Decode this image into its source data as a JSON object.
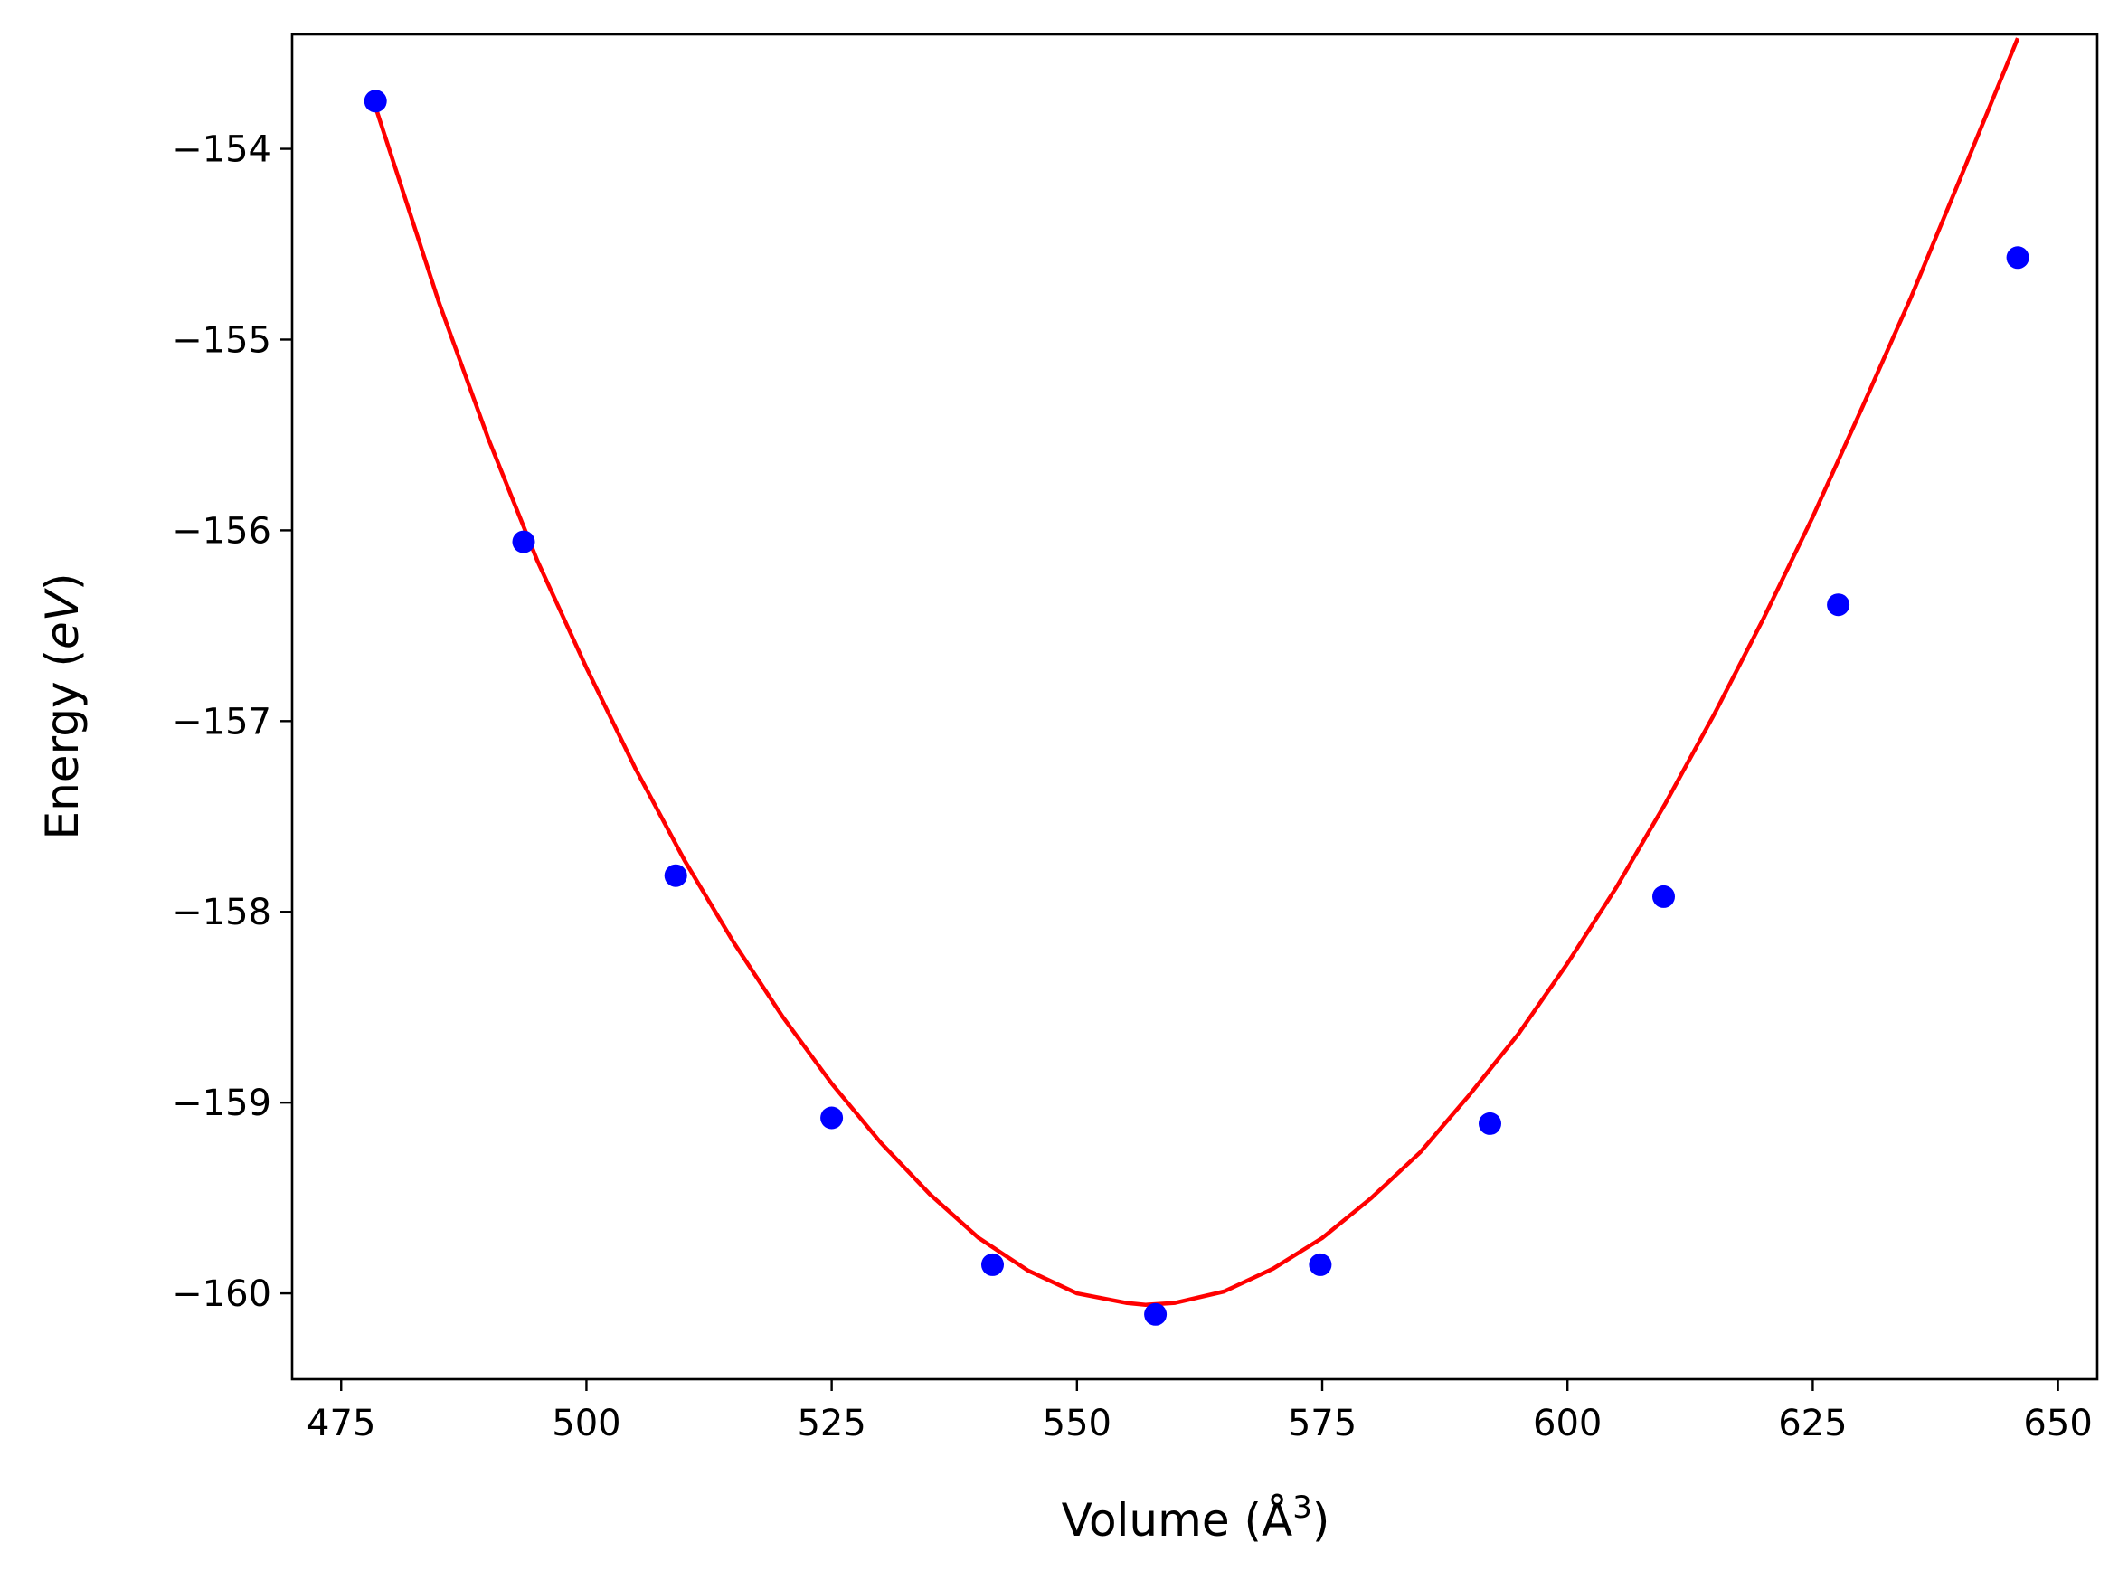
{
  "chart_data": {
    "type": "line",
    "title": "",
    "xlabel": "Volume (Å",
    "xlabel_superscript": "3",
    "xlabel_suffix": ")",
    "ylabel_prefix": "Energy (",
    "ylabel_italic": "eV",
    "ylabel_suffix": ")",
    "xlim": [
      470,
      654
    ],
    "ylim": [
      -160.45,
      -153.4
    ],
    "xticks": [
      475,
      500,
      525,
      550,
      575,
      600,
      625,
      650
    ],
    "yticks": [
      -160,
      -159,
      -158,
      -157,
      -156,
      -155,
      -154
    ],
    "xtick_labels": [
      "475",
      "500",
      "525",
      "550",
      "575",
      "600",
      "625",
      "650"
    ],
    "ytick_labels": [
      "−160",
      "−159",
      "−158",
      "−157",
      "−156",
      "−155",
      "−154"
    ],
    "grid": false,
    "legend": "none",
    "series": [
      {
        "kind": "scatter",
        "color": "#0000ff",
        "x": [
          478.5,
          493.6,
          509.1,
          525.0,
          541.4,
          558.0,
          574.8,
          592.1,
          609.8,
          627.6,
          645.9
        ],
        "y": [
          -153.75,
          -156.06,
          -157.81,
          -159.08,
          -159.85,
          -160.11,
          -159.85,
          -159.11,
          -157.92,
          -156.39,
          -154.57
        ]
      },
      {
        "kind": "line",
        "color": "#ff0000",
        "x": [
          478.5,
          485,
          490,
          495,
          500,
          505,
          510,
          515,
          520,
          525,
          530,
          535,
          540,
          545,
          550,
          555,
          557,
          560,
          565,
          570,
          575,
          580,
          585,
          590,
          595,
          600,
          605,
          610,
          615,
          620,
          625,
          630,
          635,
          640,
          645.9
        ],
        "y": [
          -153.78,
          -154.81,
          -155.52,
          -156.16,
          -156.72,
          -157.25,
          -157.73,
          -158.16,
          -158.55,
          -158.9,
          -159.21,
          -159.48,
          -159.71,
          -159.88,
          -160.0,
          -160.05,
          -160.06,
          -160.05,
          -159.99,
          -159.87,
          -159.71,
          -159.5,
          -159.26,
          -158.96,
          -158.64,
          -158.27,
          -157.87,
          -157.43,
          -156.96,
          -156.46,
          -155.93,
          -155.36,
          -154.78,
          -154.16,
          -153.42
        ]
      }
    ]
  }
}
